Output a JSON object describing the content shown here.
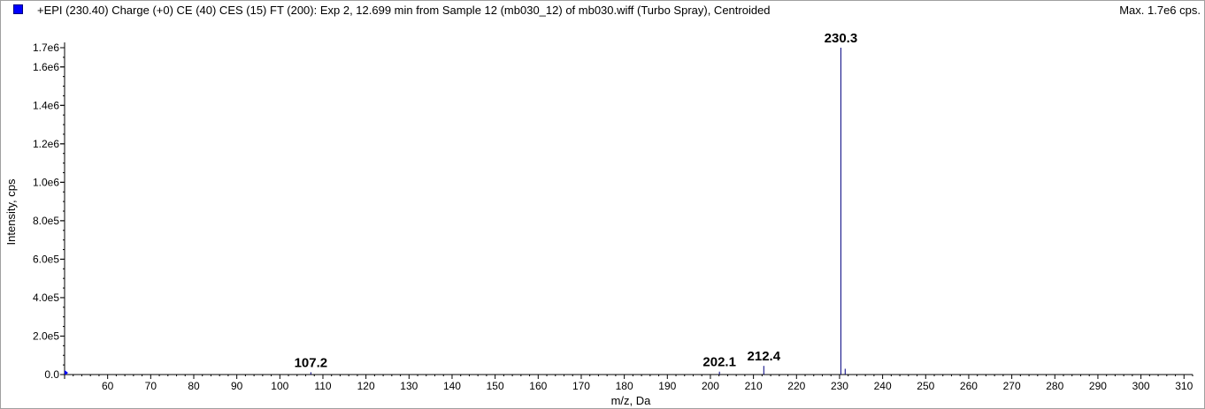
{
  "header": {
    "title": "+EPI (230.40) Charge (+0) CE (40) CES (15) FT (200): Exp 2, 12.699 min from Sample 12 (mb030_12) of mb030.wiff (Turbo Spray), Centroided",
    "max_label": "Max. 1.7e6 cps.",
    "swatch_color": "#0000ff"
  },
  "chart_data": {
    "type": "bar",
    "xlabel": "m/z, Da",
    "ylabel": "Intensity, cps",
    "xlim": [
      50,
      312
    ],
    "ylim": [
      0,
      1700000
    ],
    "x_ticks": [
      60,
      70,
      80,
      90,
      100,
      110,
      120,
      130,
      140,
      150,
      160,
      170,
      180,
      190,
      200,
      210,
      220,
      230,
      240,
      250,
      260,
      270,
      280,
      290,
      300,
      310
    ],
    "x_tick_labels": [
      "60",
      "70",
      "80",
      "90",
      "100",
      "110",
      "120",
      "130",
      "140",
      "150",
      "160",
      "170",
      "180",
      "190",
      "200",
      "210",
      "220",
      "230",
      "240",
      "250",
      "260",
      "270",
      "280",
      "290",
      "300",
      "310"
    ],
    "y_ticks": [
      0,
      200000,
      400000,
      600000,
      800000,
      1000000,
      1200000,
      1400000,
      1600000,
      1700000
    ],
    "y_tick_labels": [
      "0.0",
      "2.0e5",
      "4.0e5",
      "6.0e5",
      "8.0e5",
      "1.0e6",
      "1.2e6",
      "1.4e6",
      "1.6e6",
      "1.7e6"
    ],
    "peaks": [
      {
        "mz": 107.2,
        "intensity": 12000,
        "label": "107.2"
      },
      {
        "mz": 202.1,
        "intensity": 15000,
        "label": "202.1"
      },
      {
        "mz": 212.4,
        "intensity": 45000,
        "label": "212.4"
      },
      {
        "mz": 230.3,
        "intensity": 1700000,
        "label": "230.3"
      },
      {
        "mz": 231.3,
        "intensity": 30000,
        "label": ""
      }
    ],
    "line_color": "#00007f"
  }
}
